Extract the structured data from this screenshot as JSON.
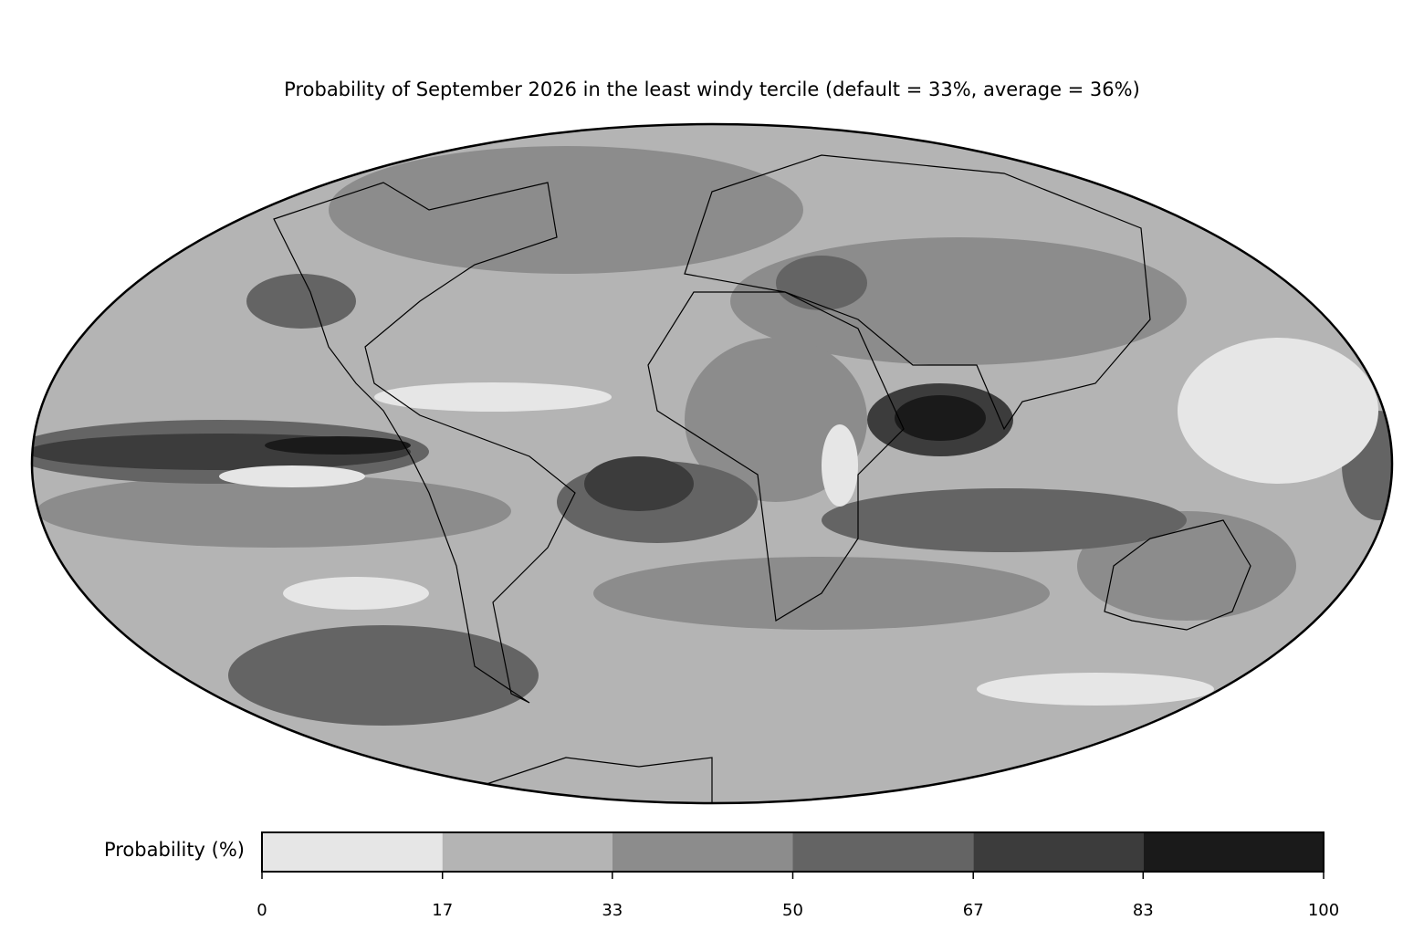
{
  "map": {
    "title": "Probability of September 2026 in the least windy tercile (default = 33%, average = 36%)",
    "colorbar": {
      "label": "Probability (%)",
      "lim": [
        0,
        100
      ],
      "ticks": [
        0,
        17,
        33,
        50,
        67,
        83,
        100
      ],
      "colors": [
        "#e6e6e6",
        "#b4b4b4",
        "#8c8c8c",
        "#646464",
        "#3c3c3c",
        "#1a1a1a"
      ]
    }
  }
}
